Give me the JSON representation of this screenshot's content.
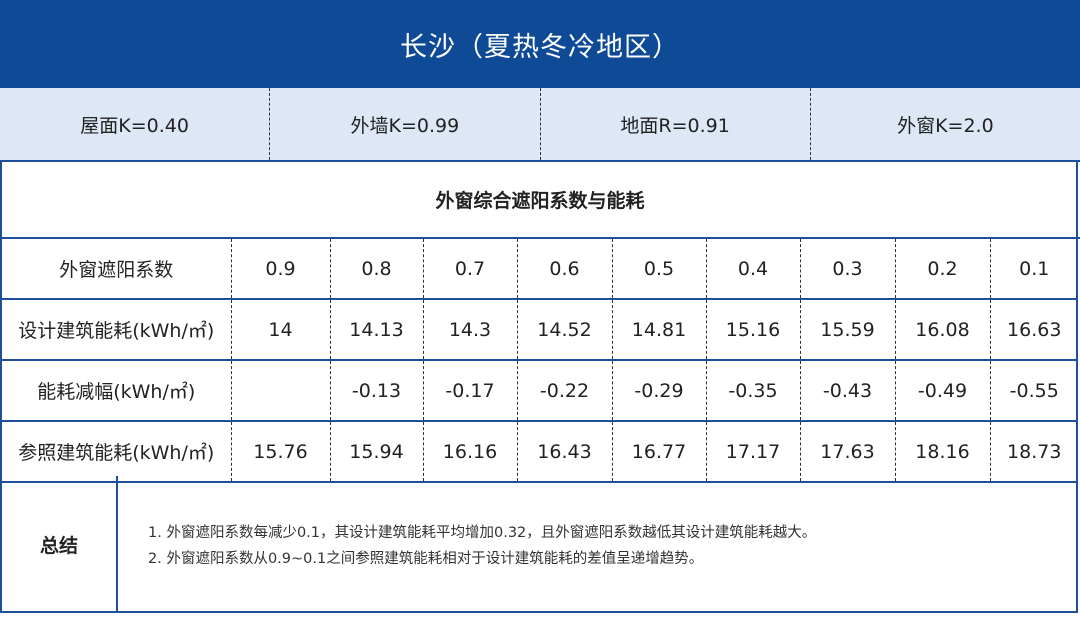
{
  "title": "长沙（夏热冬冷地区）",
  "k_values": [
    {
      "label": "屋面K=0.40"
    },
    {
      "label": "外墙K=0.99"
    },
    {
      "label": "地面R=0.91"
    },
    {
      "label": "外窗K=2.0"
    }
  ],
  "section_title": "外窗综合遮阳系数与能耗",
  "rows": [
    {
      "label": "外窗遮阳系数",
      "values": [
        "0.9",
        "0.8",
        "0.7",
        "0.6",
        "0.5",
        "0.4",
        "0.3",
        "0.2",
        "0.1"
      ]
    },
    {
      "label": "设计建筑能耗(kWh/㎡)",
      "values": [
        "14",
        "14.13",
        "14.3",
        "14.52",
        "14.81",
        "15.16",
        "15.59",
        "16.08",
        "16.63"
      ]
    },
    {
      "label": "能耗减幅(kWh/㎡)",
      "values": [
        "",
        "-0.13",
        "-0.17",
        "-0.22",
        "-0.29",
        "-0.35",
        "-0.43",
        "-0.49",
        "-0.55"
      ]
    },
    {
      "label": "参照建筑能耗(kWh/㎡)",
      "values": [
        "15.76",
        "15.94",
        "16.16",
        "16.43",
        "16.77",
        "17.17",
        "17.63",
        "18.16",
        "18.73"
      ]
    }
  ],
  "summary": {
    "label": "总结",
    "lines": [
      "1. 外窗遮阳系数每减少0.1，其设计建筑能耗平均增加0.32，且外窗遮阳系数越低其设计建筑能耗越大。",
      "2. 外窗遮阳系数从0.9~0.1之间参照建筑能耗相对于设计建筑能耗的差值呈递增趋势。"
    ]
  }
}
